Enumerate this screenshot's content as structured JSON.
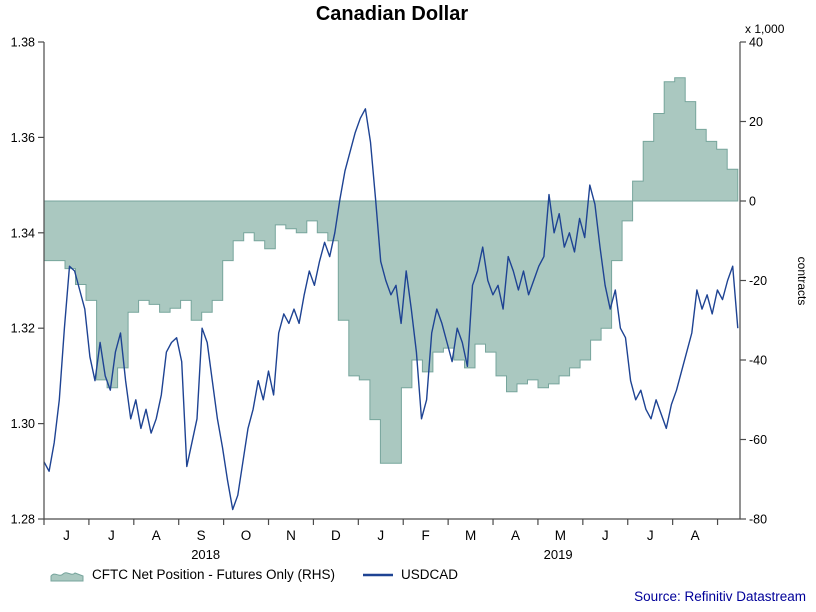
{
  "chart_data": {
    "type": "area+line",
    "title": "Canadian Dollar",
    "source": "Source: Refinitiv Datastream",
    "grid": false,
    "legend_position": "bottom",
    "left_axis": {
      "min": 1.28,
      "max": 1.38,
      "ticks": [
        "1.38",
        "1.36",
        "1.34",
        "1.32",
        "1.30",
        "1.28"
      ]
    },
    "right_axis": {
      "min": -80,
      "max": 40,
      "unit": "x 1,000",
      "label": "contracts",
      "ticks": [
        40,
        20,
        0,
        -20,
        -40,
        -60,
        -80
      ]
    },
    "x_axis": {
      "months_total": 15.5,
      "month_labels": [
        "J",
        "J",
        "A",
        "S",
        "O",
        "N",
        "D",
        "J",
        "F",
        "M",
        "A",
        "M",
        "J",
        "J",
        "A"
      ],
      "year_labels": [
        {
          "label": "2018",
          "month": 3.6
        },
        {
          "label": "2019",
          "month": 11.45
        }
      ]
    },
    "series": [
      {
        "name": "CFTC Net Position - Futures Only (RHS)",
        "type": "area",
        "axis": "right",
        "color_fill": "#aac8c0",
        "color_stroke": "#77a59c",
        "x_range": [
          0,
          15.45
        ],
        "values": [
          -15,
          -15,
          -17,
          -21,
          -25,
          -45,
          -47,
          -42,
          -28,
          -25,
          -26,
          -28,
          -27,
          -25,
          -30,
          -28,
          -25,
          -15,
          -10,
          -8,
          -10,
          -12,
          -6,
          -7,
          -8,
          -5,
          -8,
          -10,
          -30,
          -44,
          -45,
          -55,
          -66,
          -66,
          -47,
          -40,
          -43,
          -38,
          -37,
          -40,
          -42,
          -36,
          -38,
          -44,
          -48,
          -46,
          -45,
          -47,
          -46,
          -44,
          -42,
          -40,
          -35,
          -32,
          -15,
          -5,
          5,
          15,
          22,
          30,
          31,
          25,
          18,
          15,
          13,
          8
        ]
      },
      {
        "name": "USDCAD",
        "type": "line",
        "axis": "left",
        "color": "#1e4393",
        "x_range": [
          0,
          15.45
        ],
        "values": [
          1.292,
          1.29,
          1.296,
          1.305,
          1.32,
          1.333,
          1.332,
          1.328,
          1.324,
          1.314,
          1.309,
          1.317,
          1.31,
          1.307,
          1.315,
          1.319,
          1.309,
          1.301,
          1.305,
          1.299,
          1.303,
          1.298,
          1.301,
          1.306,
          1.315,
          1.317,
          1.318,
          1.313,
          1.291,
          1.296,
          1.301,
          1.32,
          1.317,
          1.309,
          1.301,
          1.295,
          1.288,
          1.282,
          1.285,
          1.292,
          1.299,
          1.303,
          1.309,
          1.305,
          1.311,
          1.306,
          1.319,
          1.323,
          1.321,
          1.324,
          1.321,
          1.327,
          1.332,
          1.329,
          1.334,
          1.338,
          1.335,
          1.34,
          1.347,
          1.353,
          1.357,
          1.361,
          1.364,
          1.366,
          1.359,
          1.347,
          1.334,
          1.33,
          1.327,
          1.329,
          1.321,
          1.332,
          1.324,
          1.315,
          1.301,
          1.305,
          1.319,
          1.324,
          1.321,
          1.317,
          1.313,
          1.32,
          1.317,
          1.312,
          1.329,
          1.332,
          1.337,
          1.33,
          1.327,
          1.329,
          1.324,
          1.335,
          1.332,
          1.328,
          1.332,
          1.327,
          1.33,
          1.333,
          1.335,
          1.348,
          1.34,
          1.344,
          1.337,
          1.34,
          1.336,
          1.343,
          1.339,
          1.35,
          1.346,
          1.337,
          1.329,
          1.324,
          1.328,
          1.32,
          1.318,
          1.309,
          1.305,
          1.307,
          1.303,
          1.301,
          1.305,
          1.302,
          1.299,
          1.304,
          1.307,
          1.311,
          1.315,
          1.319,
          1.328,
          1.324,
          1.327,
          1.323,
          1.328,
          1.326,
          1.33,
          1.333,
          1.32
        ]
      }
    ]
  }
}
